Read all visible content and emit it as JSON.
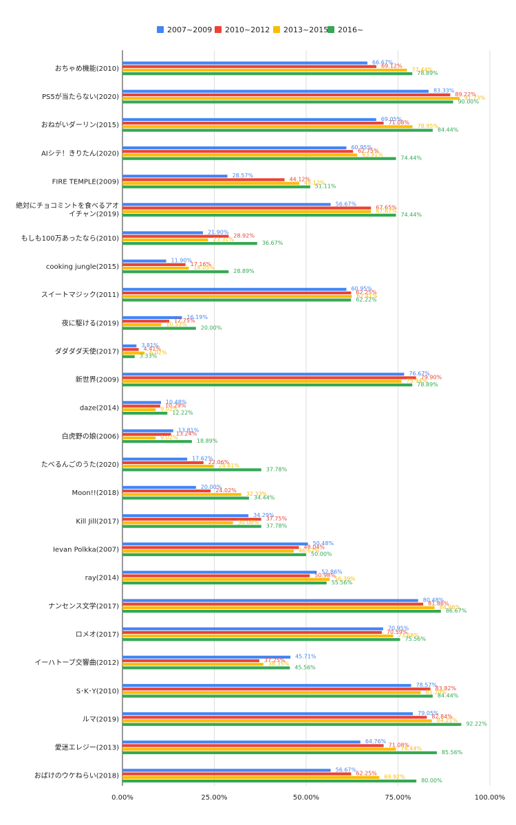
{
  "chart_data": {
    "type": "bar",
    "orientation": "horizontal",
    "title": "",
    "xlabel": "",
    "ylabel": "",
    "xlim": [
      0,
      100
    ],
    "x_ticks": [
      "0.00%",
      "25.00%",
      "50.00%",
      "75.00%",
      "100.00%"
    ],
    "x_tick_values": [
      0,
      25,
      50,
      75,
      100
    ],
    "grid": true,
    "legend_position": "top-center",
    "colors": [
      "#4285f4",
      "#ea4335",
      "#fbbc04",
      "#34a853"
    ],
    "categories": [
      [
        "おちゃめ機能(2010)"
      ],
      [
        "PS5が当たらない(2020)"
      ],
      [
        "おねがいダーリン(2015)"
      ],
      [
        "AIシテ！きりたん(2020)"
      ],
      [
        "FIRE TEMPLE(2009)"
      ],
      [
        "絶対にチョコミントを食べるアオ",
        "イチャン(2019)"
      ],
      [
        "もしも100万あったなら(2010)"
      ],
      [
        "cooking jungle(2015)"
      ],
      [
        "スイートマジック(2011)"
      ],
      [
        "夜に駆ける(2019)"
      ],
      [
        "ダダダダ天使(2017)"
      ],
      [
        "新世界(2009)"
      ],
      [
        "daze(2014)"
      ],
      [
        "白虎野の娘(2006)"
      ],
      [
        "たべるんごのうた(2020)"
      ],
      [
        "Moon!!(2018)"
      ],
      [
        "Kill Jill(2017)"
      ],
      [
        "Ievan Polkka(2007)"
      ],
      [
        "ray(2014)"
      ],
      [
        "ナンセンス文学(2017)"
      ],
      [
        "ロメオ(2017)"
      ],
      [
        "イーハトーブ交響曲(2012)"
      ],
      [
        "S･K･Y(2010)"
      ],
      [
        "ルマ(2019)"
      ],
      [
        "愛迷エレジー(2013)"
      ],
      [
        "おばけのウケねらい(2018)"
      ]
    ],
    "series": [
      {
        "name": "2007~2009",
        "values": [
          66.67,
          83.33,
          69.05,
          60.95,
          28.57,
          56.67,
          21.9,
          11.9,
          60.95,
          16.19,
          3.81,
          76.67,
          10.48,
          13.81,
          17.62,
          20.0,
          34.29,
          50.48,
          52.86,
          80.48,
          70.95,
          45.71,
          78.57,
          79.05,
          64.76,
          56.67
        ]
      },
      {
        "name": "2010~2012",
        "values": [
          69.12,
          89.22,
          71.08,
          62.75,
          44.12,
          67.65,
          28.92,
          17.16,
          62.25,
          12.75,
          4.41,
          79.9,
          10.29,
          13.24,
          22.06,
          24.02,
          37.75,
          48.04,
          50.98,
          81.86,
          70.59,
          37.25,
          83.82,
          82.84,
          71.08,
          62.25
        ]
      },
      {
        "name": "2013~2015",
        "values": [
          77.44,
          91.73,
          78.95,
          63.91,
          48.12,
          67.67,
          23.31,
          18.05,
          62.41,
          10.53,
          6.02,
          75.94,
          9.02,
          9.02,
          24.81,
          32.33,
          30.08,
          46.62,
          56.39,
          84.96,
          73.68,
          38.35,
          81.2,
          84.21,
          74.44,
          69.92
        ]
      },
      {
        "name": "2016~",
        "values": [
          78.89,
          90.0,
          84.44,
          74.44,
          51.11,
          74.44,
          36.67,
          28.89,
          62.22,
          20.0,
          3.33,
          78.89,
          12.22,
          18.89,
          37.78,
          34.44,
          37.78,
          50.0,
          55.56,
          86.67,
          75.56,
          45.56,
          84.44,
          92.22,
          85.56,
          80.0
        ]
      }
    ]
  }
}
